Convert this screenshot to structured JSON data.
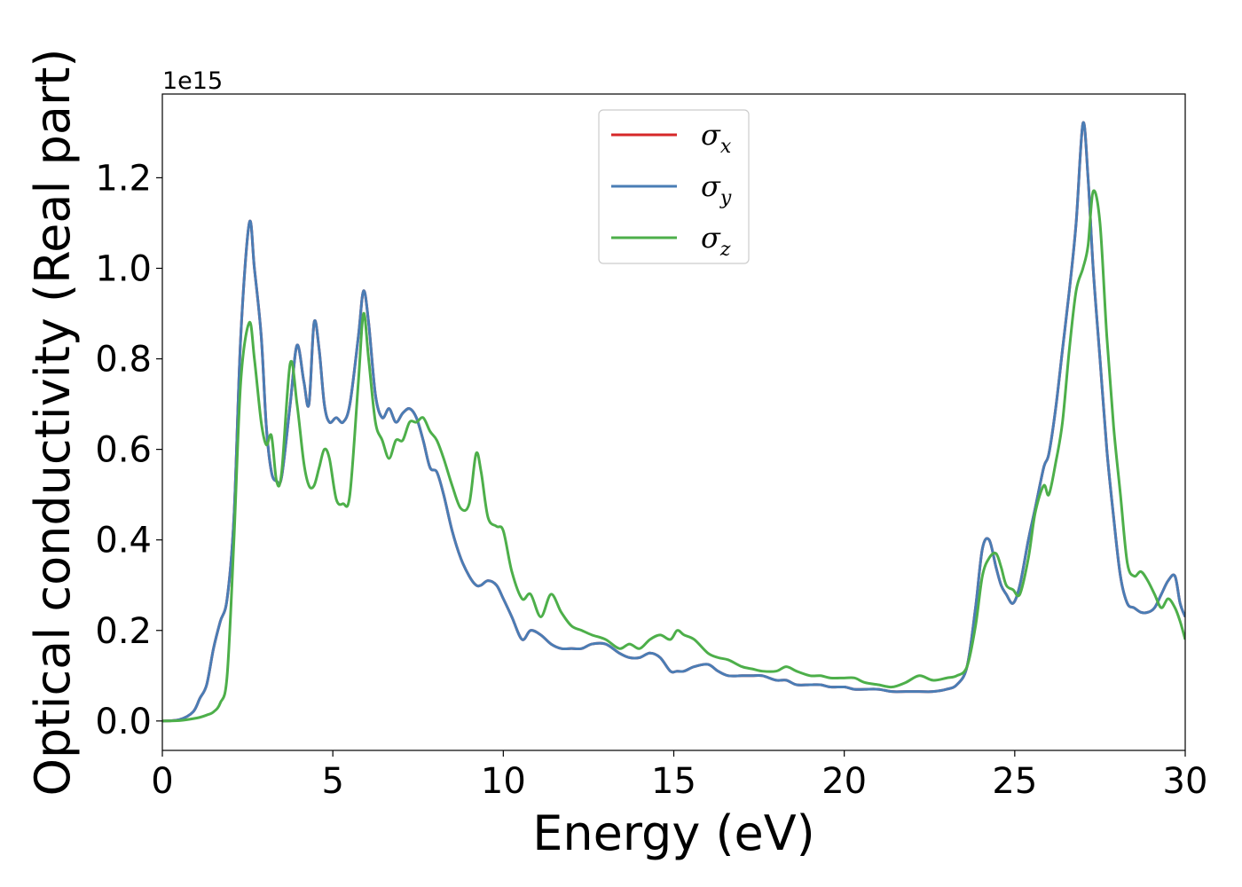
{
  "chart_data": {
    "type": "line",
    "title": "",
    "xlabel": "Energy (eV)",
    "ylabel": "Optical conductivity (Real part)",
    "y_offset_label": "1e15",
    "xlim": [
      0,
      30
    ],
    "ylim": [
      -0.065,
      1.385
    ],
    "x_ticks": [
      0,
      5,
      10,
      15,
      20,
      25,
      30
    ],
    "x_tick_labels": [
      "0",
      "5",
      "10",
      "15",
      "20",
      "25",
      "30"
    ],
    "y_ticks": [
      0.0,
      0.2,
      0.4,
      0.6,
      0.8,
      1.0,
      1.2
    ],
    "y_tick_labels": [
      "0.0",
      "0.2",
      "0.4",
      "0.6",
      "0.8",
      "1.0",
      "1.2"
    ],
    "grid": false,
    "legend_position": "top-center",
    "x": [
      0,
      0.5,
      0.9,
      1.1,
      1.3,
      1.5,
      1.7,
      1.9,
      2.1,
      2.3,
      2.55,
      2.7,
      2.9,
      3.05,
      3.2,
      3.35,
      3.5,
      3.75,
      3.95,
      4.15,
      4.3,
      4.45,
      4.6,
      4.75,
      4.9,
      5.1,
      5.3,
      5.5,
      5.75,
      5.9,
      6.05,
      6.25,
      6.45,
      6.65,
      6.85,
      7.05,
      7.25,
      7.45,
      7.65,
      7.85,
      8.05,
      8.25,
      8.5,
      8.75,
      9.0,
      9.2,
      9.35,
      9.55,
      9.8,
      10.0,
      10.25,
      10.55,
      10.8,
      11.1,
      11.4,
      11.7,
      12.0,
      12.3,
      12.6,
      13.0,
      13.4,
      13.7,
      14.0,
      14.3,
      14.6,
      14.9,
      15.1,
      15.3,
      15.6,
      16.0,
      16.3,
      16.6,
      17.0,
      17.3,
      17.6,
      18.0,
      18.3,
      18.6,
      19.0,
      19.3,
      19.6,
      20.0,
      20.3,
      20.6,
      21.0,
      21.4,
      21.8,
      22.2,
      22.6,
      23.0,
      23.3,
      23.6,
      23.85,
      24.05,
      24.25,
      24.45,
      24.6,
      24.75,
      24.95,
      25.15,
      25.4,
      25.6,
      25.85,
      26.0,
      26.2,
      26.4,
      26.6,
      26.8,
      27.0,
      27.15,
      27.3,
      27.5,
      27.7,
      27.9,
      28.1,
      28.3,
      28.5,
      28.7,
      28.9,
      29.1,
      29.3,
      29.5,
      29.7,
      29.85,
      30.0
    ],
    "series": [
      {
        "name": "σx",
        "color": "#d62728",
        "values": [
          0,
          0.003,
          0.02,
          0.05,
          0.08,
          0.16,
          0.22,
          0.27,
          0.45,
          0.85,
          1.1,
          1.0,
          0.85,
          0.65,
          0.55,
          0.53,
          0.54,
          0.7,
          0.83,
          0.75,
          0.7,
          0.88,
          0.82,
          0.7,
          0.66,
          0.67,
          0.66,
          0.7,
          0.85,
          0.95,
          0.88,
          0.72,
          0.67,
          0.69,
          0.66,
          0.68,
          0.69,
          0.67,
          0.62,
          0.56,
          0.55,
          0.5,
          0.42,
          0.36,
          0.32,
          0.3,
          0.3,
          0.31,
          0.3,
          0.27,
          0.23,
          0.18,
          0.2,
          0.19,
          0.17,
          0.16,
          0.16,
          0.16,
          0.17,
          0.17,
          0.15,
          0.14,
          0.14,
          0.15,
          0.14,
          0.11,
          0.11,
          0.11,
          0.12,
          0.125,
          0.11,
          0.1,
          0.1,
          0.1,
          0.1,
          0.09,
          0.09,
          0.08,
          0.08,
          0.08,
          0.075,
          0.075,
          0.07,
          0.07,
          0.07,
          0.065,
          0.065,
          0.065,
          0.065,
          0.07,
          0.08,
          0.12,
          0.25,
          0.38,
          0.4,
          0.34,
          0.3,
          0.28,
          0.26,
          0.3,
          0.4,
          0.47,
          0.56,
          0.59,
          0.69,
          0.82,
          0.95,
          1.1,
          1.32,
          1.2,
          1.0,
          0.8,
          0.6,
          0.45,
          0.32,
          0.26,
          0.25,
          0.24,
          0.24,
          0.25,
          0.28,
          0.31,
          0.32,
          0.26,
          0.23
        ]
      },
      {
        "name": "σy",
        "color": "#4a7db5",
        "values": [
          0,
          0.003,
          0.02,
          0.05,
          0.08,
          0.16,
          0.22,
          0.27,
          0.45,
          0.85,
          1.1,
          1.0,
          0.85,
          0.65,
          0.55,
          0.53,
          0.54,
          0.7,
          0.83,
          0.75,
          0.7,
          0.88,
          0.82,
          0.7,
          0.66,
          0.67,
          0.66,
          0.7,
          0.85,
          0.95,
          0.88,
          0.72,
          0.67,
          0.69,
          0.66,
          0.68,
          0.69,
          0.67,
          0.62,
          0.56,
          0.55,
          0.5,
          0.42,
          0.36,
          0.32,
          0.3,
          0.3,
          0.31,
          0.3,
          0.27,
          0.23,
          0.18,
          0.2,
          0.19,
          0.17,
          0.16,
          0.16,
          0.16,
          0.17,
          0.17,
          0.15,
          0.14,
          0.14,
          0.15,
          0.14,
          0.11,
          0.11,
          0.11,
          0.12,
          0.125,
          0.11,
          0.1,
          0.1,
          0.1,
          0.1,
          0.09,
          0.09,
          0.08,
          0.08,
          0.08,
          0.075,
          0.075,
          0.07,
          0.07,
          0.07,
          0.065,
          0.065,
          0.065,
          0.065,
          0.07,
          0.08,
          0.12,
          0.25,
          0.38,
          0.4,
          0.34,
          0.3,
          0.28,
          0.26,
          0.3,
          0.4,
          0.47,
          0.56,
          0.59,
          0.69,
          0.82,
          0.95,
          1.1,
          1.32,
          1.2,
          1.0,
          0.8,
          0.6,
          0.45,
          0.32,
          0.26,
          0.25,
          0.24,
          0.24,
          0.25,
          0.28,
          0.31,
          0.32,
          0.26,
          0.23
        ]
      },
      {
        "name": "σz",
        "color": "#4daf4a",
        "values": [
          0,
          0.001,
          0.005,
          0.008,
          0.013,
          0.02,
          0.04,
          0.1,
          0.4,
          0.75,
          0.88,
          0.8,
          0.66,
          0.61,
          0.63,
          0.53,
          0.55,
          0.79,
          0.7,
          0.57,
          0.52,
          0.52,
          0.56,
          0.6,
          0.58,
          0.49,
          0.48,
          0.5,
          0.75,
          0.9,
          0.8,
          0.66,
          0.62,
          0.58,
          0.62,
          0.62,
          0.66,
          0.66,
          0.67,
          0.64,
          0.62,
          0.58,
          0.52,
          0.47,
          0.48,
          0.59,
          0.55,
          0.45,
          0.43,
          0.42,
          0.33,
          0.27,
          0.28,
          0.23,
          0.28,
          0.24,
          0.21,
          0.2,
          0.19,
          0.18,
          0.16,
          0.17,
          0.16,
          0.18,
          0.19,
          0.18,
          0.2,
          0.19,
          0.18,
          0.15,
          0.14,
          0.135,
          0.12,
          0.115,
          0.11,
          0.11,
          0.12,
          0.11,
          0.1,
          0.1,
          0.095,
          0.095,
          0.095,
          0.085,
          0.08,
          0.075,
          0.085,
          0.1,
          0.09,
          0.095,
          0.1,
          0.12,
          0.21,
          0.32,
          0.36,
          0.37,
          0.34,
          0.3,
          0.29,
          0.28,
          0.36,
          0.46,
          0.52,
          0.5,
          0.57,
          0.66,
          0.82,
          0.95,
          1.0,
          1.05,
          1.17,
          1.1,
          0.85,
          0.65,
          0.5,
          0.35,
          0.32,
          0.33,
          0.31,
          0.28,
          0.25,
          0.27,
          0.25,
          0.22,
          0.18
        ]
      }
    ]
  }
}
